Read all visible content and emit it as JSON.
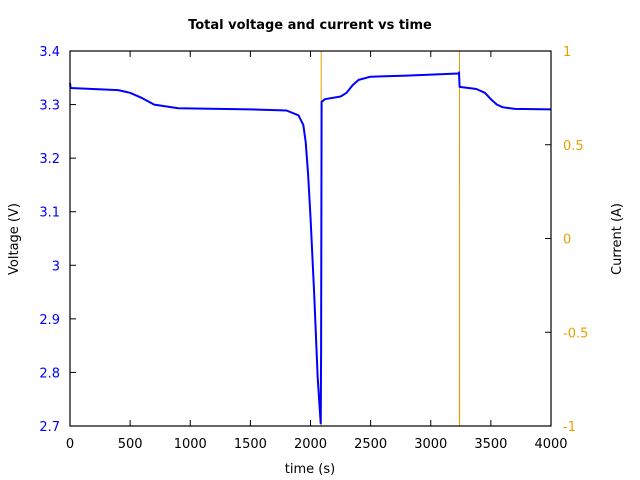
{
  "chart_data": {
    "type": "line",
    "title": "Total voltage and current vs time",
    "xlabel": "time (s)",
    "ylabel": "Voltage (V)",
    "y2label": "Current (A)",
    "xlim": [
      0,
      4000
    ],
    "ylim": [
      2.7,
      3.4
    ],
    "y2lim": [
      -1,
      1
    ],
    "grid": false,
    "legend": "none",
    "x_ticks": [
      "0",
      "500",
      "1000",
      "1500",
      "2000",
      "2500",
      "3000",
      "3500",
      "4000"
    ],
    "y_ticks": [
      "2.7",
      "2.8",
      "2.9",
      "3",
      "3.1",
      "3.2",
      "3.3",
      "3.4"
    ],
    "y2_ticks": [
      "-1",
      "-0.5",
      "0",
      "0.5",
      "1"
    ],
    "colors": {
      "voltage": "#0000ff",
      "current": "#e69f00",
      "y_ticks": "#0000ff",
      "y2_ticks": "#e69f00"
    },
    "series": [
      {
        "name": "Voltage (V)",
        "axis": "left",
        "x": [
          0,
          5,
          400,
          500,
          600,
          700,
          900,
          1500,
          1800,
          1900,
          1940,
          1960,
          1980,
          2000,
          2030,
          2060,
          2085,
          2088,
          2092,
          2120,
          2250,
          2300,
          2350,
          2400,
          2500,
          2800,
          3230,
          3235,
          3240,
          3380,
          3450,
          3500,
          3550,
          3600,
          3700,
          4000
        ],
        "values": [
          3.34,
          3.331,
          3.327,
          3.322,
          3.312,
          3.3,
          3.293,
          3.291,
          3.289,
          3.28,
          3.262,
          3.23,
          3.17,
          3.09,
          2.95,
          2.79,
          2.705,
          2.84,
          3.305,
          3.31,
          3.315,
          3.322,
          3.336,
          3.346,
          3.352,
          3.354,
          3.358,
          3.36,
          3.333,
          3.329,
          3.322,
          3.31,
          3.3,
          3.295,
          3.292,
          3.291
        ]
      },
      {
        "name": "Current (A)",
        "axis": "right",
        "x": [
          0,
          2088,
          2089,
          2089,
          2090,
          3238,
          3239,
          3239,
          3240,
          4000
        ],
        "values": [
          -1,
          -1,
          1,
          1,
          -1,
          -1,
          1,
          1,
          -1,
          -1
        ]
      }
    ]
  }
}
